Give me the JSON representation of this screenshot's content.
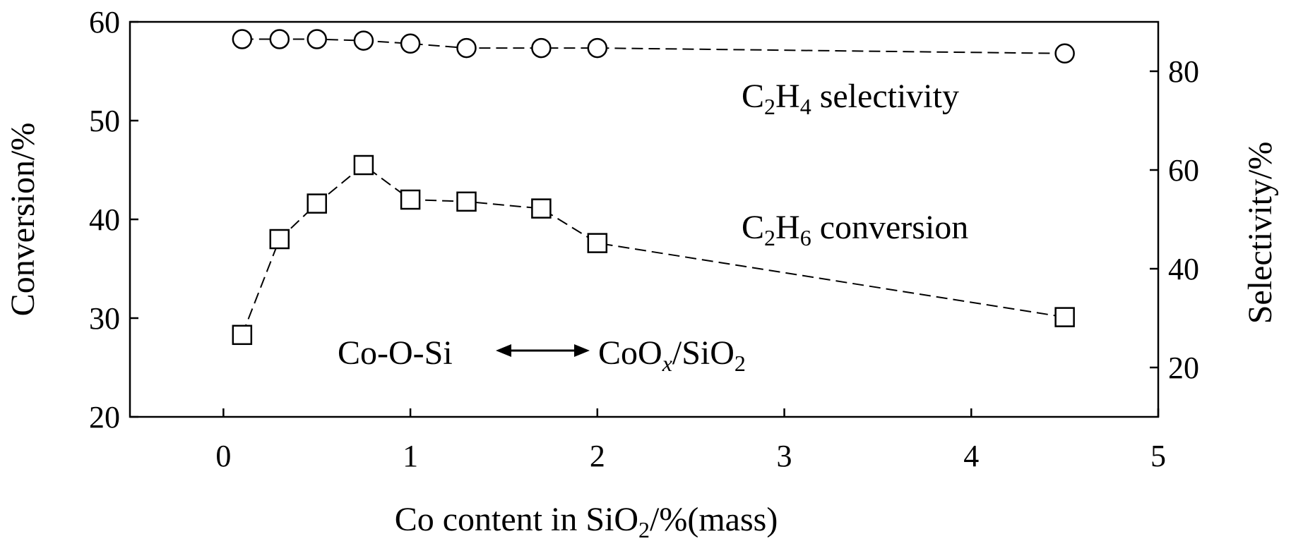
{
  "chart_data": {
    "type": "line",
    "x_axis": {
      "label_main": "Co content in SiO",
      "label_sub": "2",
      "label_tail": "/%(mass)",
      "range": [
        -0.5,
        5
      ],
      "ticks": [
        0,
        1,
        2,
        3,
        4,
        5
      ],
      "tick_labels": [
        "0",
        "1",
        "2",
        "3",
        "4",
        "5"
      ]
    },
    "y_left": {
      "label": "Conversion/%",
      "range": [
        20,
        60
      ],
      "ticks": [
        20,
        30,
        40,
        50,
        60
      ],
      "tick_labels": [
        "20",
        "30",
        "40",
        "50",
        "60"
      ]
    },
    "y_right": {
      "label": "Selectivity/%",
      "range": [
        10,
        90
      ],
      "ticks": [
        20,
        40,
        60,
        80
      ],
      "tick_labels": [
        "20",
        "40",
        "60",
        "80"
      ]
    },
    "series": [
      {
        "id": "conversion",
        "axis": "left",
        "marker": "square",
        "line_style": "dashed",
        "x": [
          0.1,
          0.3,
          0.5,
          0.75,
          1.0,
          1.3,
          1.7,
          2.0,
          4.5
        ],
        "y": [
          28.3,
          38.0,
          41.6,
          45.5,
          42.0,
          41.8,
          41.1,
          37.6,
          30.1
        ]
      },
      {
        "id": "selectivity",
        "axis": "right",
        "marker": "circle",
        "line_style": "dashed",
        "x": [
          0.1,
          0.3,
          0.5,
          0.75,
          1.0,
          1.3,
          1.7,
          2.0,
          4.5
        ],
        "y": [
          86.5,
          86.5,
          86.5,
          86.2,
          85.6,
          84.7,
          84.7,
          84.7,
          83.6
        ]
      }
    ],
    "annotations": {
      "selectivity_label": {
        "pre": "C",
        "sub1": "2",
        "mid": "H",
        "sub2": "4",
        "post": " selectivity"
      },
      "conversion_label": {
        "pre": "C",
        "sub1": "2",
        "mid": "H",
        "sub2": "6",
        "post": " conversion"
      },
      "arrow_left": "Co-O-Si",
      "arrow_right_pre": "CoO",
      "arrow_right_italic": "x",
      "arrow_right_mid": "/SiO",
      "arrow_right_sub": "2"
    },
    "grid": false,
    "legend": "none"
  }
}
